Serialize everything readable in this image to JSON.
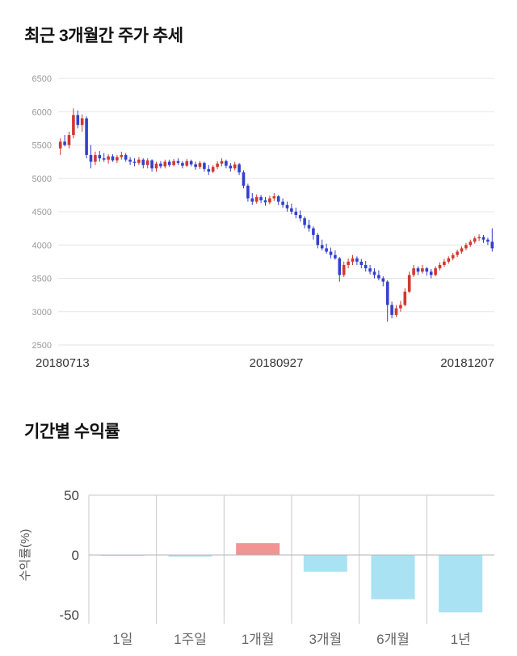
{
  "page": {
    "background": "#ffffff"
  },
  "sections": {
    "price_trend": {
      "title": "최근 3개월간 주가 추세"
    },
    "returns": {
      "title": "기간별 수익률"
    }
  },
  "chart_data": [
    {
      "type": "candlestick",
      "title": "최근 3개월간 주가 추세",
      "x_axis_labels": [
        "20180713",
        "20180927",
        "20181207"
      ],
      "y_ticks": [
        6500,
        6000,
        5500,
        5000,
        4500,
        4000,
        3500,
        3000,
        2500
      ],
      "ylim": [
        2500,
        6500
      ],
      "grid": true,
      "colors": {
        "up": "#d0382f",
        "down": "#3340cc",
        "grid": "#e6e6e6",
        "tick_label": "#999999",
        "x_label": "#333333"
      },
      "candles": [
        [
          5450,
          5600,
          5350,
          5550
        ],
        [
          5550,
          5650,
          5480,
          5500
        ],
        [
          5500,
          5700,
          5450,
          5650
        ],
        [
          5650,
          6050,
          5600,
          5950
        ],
        [
          5950,
          6020,
          5750,
          5800
        ],
        [
          5800,
          5960,
          5700,
          5900
        ],
        [
          5900,
          5930,
          5300,
          5350
        ],
        [
          5350,
          5500,
          5150,
          5250
        ],
        [
          5250,
          5400,
          5200,
          5350
        ],
        [
          5350,
          5410,
          5250,
          5300
        ],
        [
          5300,
          5380,
          5250,
          5280
        ],
        [
          5280,
          5360,
          5220,
          5330
        ],
        [
          5330,
          5360,
          5250,
          5270
        ],
        [
          5270,
          5350,
          5230,
          5320
        ],
        [
          5320,
          5400,
          5280,
          5350
        ],
        [
          5350,
          5380,
          5250,
          5280
        ],
        [
          5280,
          5320,
          5200,
          5250
        ],
        [
          5250,
          5300,
          5180,
          5230
        ],
        [
          5230,
          5320,
          5200,
          5280
        ],
        [
          5280,
          5300,
          5150,
          5200
        ],
        [
          5200,
          5300,
          5150,
          5270
        ],
        [
          5270,
          5285,
          5100,
          5150
        ],
        [
          5150,
          5250,
          5100,
          5220
        ],
        [
          5220,
          5260,
          5150,
          5180
        ],
        [
          5180,
          5280,
          5150,
          5250
        ],
        [
          5250,
          5280,
          5170,
          5200
        ],
        [
          5200,
          5290,
          5180,
          5260
        ],
        [
          5260,
          5300,
          5200,
          5230
        ],
        [
          5230,
          5260,
          5150,
          5190
        ],
        [
          5190,
          5290,
          5170,
          5260
        ],
        [
          5260,
          5280,
          5180,
          5210
        ],
        [
          5210,
          5250,
          5130,
          5170
        ],
        [
          5170,
          5260,
          5140,
          5230
        ],
        [
          5230,
          5250,
          5100,
          5140
        ],
        [
          5140,
          5200,
          5050,
          5100
        ],
        [
          5100,
          5200,
          5080,
          5170
        ],
        [
          5170,
          5260,
          5140,
          5220
        ],
        [
          5220,
          5300,
          5180,
          5260
        ],
        [
          5260,
          5280,
          5150,
          5190
        ],
        [
          5190,
          5230,
          5100,
          5150
        ],
        [
          5150,
          5250,
          5120,
          5210
        ],
        [
          5210,
          5230,
          5050,
          5090
        ],
        [
          5090,
          5120,
          4850,
          4890
        ],
        [
          4890,
          4920,
          4650,
          4700
        ],
        [
          4700,
          4780,
          4600,
          4650
        ],
        [
          4650,
          4760,
          4620,
          4720
        ],
        [
          4720,
          4750,
          4630,
          4670
        ],
        [
          4670,
          4720,
          4590,
          4640
        ],
        [
          4640,
          4740,
          4610,
          4700
        ],
        [
          4700,
          4780,
          4660,
          4730
        ],
        [
          4730,
          4750,
          4600,
          4650
        ],
        [
          4650,
          4700,
          4560,
          4600
        ],
        [
          4600,
          4650,
          4500,
          4550
        ],
        [
          4550,
          4620,
          4460,
          4500
        ],
        [
          4500,
          4560,
          4400,
          4450
        ],
        [
          4450,
          4520,
          4350,
          4400
        ],
        [
          4400,
          4430,
          4250,
          4300
        ],
        [
          4300,
          4380,
          4200,
          4250
        ],
        [
          4250,
          4280,
          4080,
          4150
        ],
        [
          4150,
          4180,
          3950,
          4000
        ],
        [
          4000,
          4080,
          3920,
          3950
        ],
        [
          3950,
          4020,
          3870,
          3900
        ],
        [
          3900,
          3960,
          3800,
          3850
        ],
        [
          3850,
          3920,
          3780,
          3800
        ],
        [
          3800,
          3820,
          3450,
          3550
        ],
        [
          3550,
          3750,
          3520,
          3700
        ],
        [
          3700,
          3800,
          3650,
          3750
        ],
        [
          3750,
          3850,
          3700,
          3800
        ],
        [
          3800,
          3830,
          3700,
          3750
        ],
        [
          3750,
          3790,
          3650,
          3700
        ],
        [
          3700,
          3760,
          3600,
          3650
        ],
        [
          3650,
          3700,
          3560,
          3600
        ],
        [
          3600,
          3650,
          3500,
          3550
        ],
        [
          3550,
          3620,
          3470,
          3500
        ],
        [
          3500,
          3530,
          3380,
          3450
        ],
        [
          3450,
          3470,
          2850,
          3100
        ],
        [
          3100,
          3150,
          2900,
          2950
        ],
        [
          2950,
          3100,
          2920,
          3050
        ],
        [
          3050,
          3160,
          3000,
          3100
        ],
        [
          3100,
          3350,
          3080,
          3300
        ],
        [
          3300,
          3600,
          3280,
          3550
        ],
        [
          3550,
          3700,
          3520,
          3650
        ],
        [
          3650,
          3680,
          3550,
          3600
        ],
        [
          3600,
          3700,
          3570,
          3650
        ],
        [
          3650,
          3670,
          3540,
          3600
        ],
        [
          3600,
          3640,
          3500,
          3550
        ],
        [
          3550,
          3680,
          3530,
          3650
        ],
        [
          3650,
          3740,
          3620,
          3700
        ],
        [
          3700,
          3790,
          3670,
          3750
        ],
        [
          3750,
          3830,
          3720,
          3800
        ],
        [
          3800,
          3880,
          3770,
          3850
        ],
        [
          3850,
          3930,
          3820,
          3900
        ],
        [
          3900,
          3980,
          3870,
          3950
        ],
        [
          3950,
          4030,
          3920,
          4000
        ],
        [
          4000,
          4080,
          3970,
          4050
        ],
        [
          4050,
          4130,
          4020,
          4100
        ],
        [
          4100,
          4160,
          4060,
          4120
        ],
        [
          4120,
          4150,
          4030,
          4080
        ],
        [
          4080,
          4110,
          4000,
          4050
        ],
        [
          4050,
          4250,
          3900,
          3950
        ]
      ]
    },
    {
      "type": "bar",
      "title": "기간별 수익률",
      "ylabel": "수익률(%)",
      "categories": [
        "1일",
        "1주일",
        "1개월",
        "3개월",
        "6개월",
        "1년"
      ],
      "values": [
        -0.3,
        -1.3,
        10,
        -14,
        -37,
        -48
      ],
      "y_ticks": [
        50,
        0,
        -50
      ],
      "ylim": [
        -55,
        55
      ],
      "legend": false,
      "colors": {
        "positive": "#f09494",
        "negative": "#a9e2f3",
        "grid": "#c8c8c8",
        "zero_line": "#b5b5b5",
        "tick_label": "#444444",
        "category_label": "#666666",
        "axis_title": "#555555"
      }
    }
  ]
}
